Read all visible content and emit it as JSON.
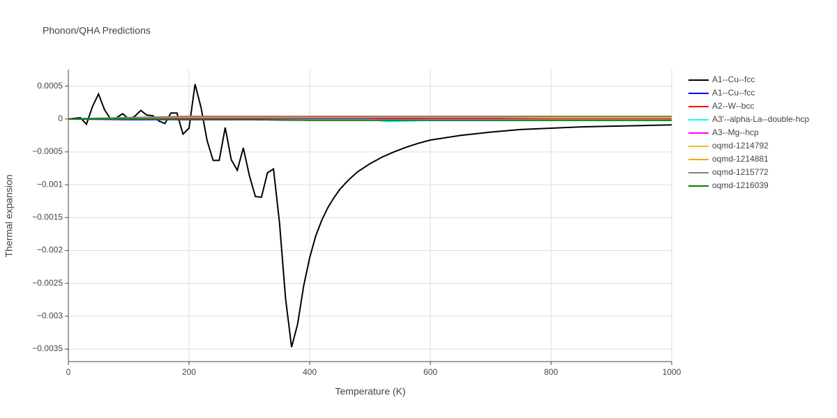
{
  "chart_data": {
    "type": "line",
    "title": "Phonon/QHA Predictions",
    "x_label": "Temperature (K)",
    "y_label": "Thermal expansion",
    "xlim": [
      0,
      1000
    ],
    "xticks": [
      0,
      200,
      400,
      600,
      800,
      1000
    ],
    "ylim": [
      -0.00369,
      0.00075
    ],
    "yticks": [
      {
        "value": -0.0035,
        "label": "−0.0035"
      },
      {
        "value": -0.003,
        "label": "−0.003"
      },
      {
        "value": -0.0025,
        "label": "−0.0025"
      },
      {
        "value": -0.002,
        "label": "−0.002"
      },
      {
        "value": -0.0015,
        "label": "−0.0015"
      },
      {
        "value": -0.001,
        "label": "−0.001"
      },
      {
        "value": -0.0005,
        "label": "−0.0005"
      },
      0,
      0.0005
    ],
    "grid": true,
    "series": [
      {
        "name": "A1--Cu--fcc",
        "color": "#000000",
        "x": [
          0,
          10,
          20,
          30,
          40,
          50,
          60,
          70,
          80,
          90,
          100,
          110,
          120,
          130,
          140,
          150,
          160,
          170,
          180,
          190,
          200,
          210,
          220,
          230,
          240,
          250,
          260,
          270,
          280,
          290,
          300,
          310,
          320,
          330,
          340,
          350,
          360,
          370,
          380,
          390,
          400,
          410,
          420,
          430,
          440,
          450,
          460,
          470,
          480,
          490,
          500,
          520,
          540,
          560,
          580,
          600,
          650,
          700,
          750,
          800,
          850,
          900,
          950,
          1000
        ],
        "values": [
          0,
          1e-05,
          2e-05,
          -8e-05,
          0.00019,
          0.00038,
          0.00014,
          0,
          2e-05,
          8e-05,
          0,
          4e-05,
          0.00013,
          6e-05,
          5e-05,
          -3e-05,
          -7e-05,
          9e-05,
          9e-05,
          -0.00023,
          -0.00014,
          0.00053,
          0.00017,
          -0.00033,
          -0.00063,
          -0.00063,
          -0.00013,
          -0.00062,
          -0.00078,
          -0.00044,
          -0.00086,
          -0.00118,
          -0.00119,
          -0.00082,
          -0.00076,
          -0.00158,
          -0.00273,
          -0.00347,
          -0.00312,
          -0.00254,
          -0.00211,
          -0.00178,
          -0.00154,
          -0.00135,
          -0.0012,
          -0.00107,
          -0.00097,
          -0.00088,
          -0.0008,
          -0.00074,
          -0.00068,
          -0.00058,
          -0.0005,
          -0.00043,
          -0.00037,
          -0.00032,
          -0.00025,
          -0.0002,
          -0.00016,
          -0.00014,
          -0.00012,
          -0.00011,
          -0.0001,
          -9e-05
        ]
      },
      {
        "name": "A1--Cu--fcc",
        "color": "#0000ff",
        "x": [
          0,
          100,
          200,
          300,
          400,
          500,
          600,
          700,
          800,
          900,
          1000
        ],
        "values": [
          0,
          -1e-05,
          -1e-05,
          -1e-05,
          -2e-05,
          -2e-05,
          -2e-05,
          -2e-05,
          -2e-05,
          -2e-05,
          -2e-05
        ]
      },
      {
        "name": "A2--W--bcc",
        "color": "#ff0000",
        "x": [
          0,
          100,
          200,
          300,
          400,
          500,
          600,
          700,
          800,
          900,
          1000
        ],
        "values": [
          0,
          1e-05,
          1e-05,
          1e-05,
          1e-05,
          1e-05,
          1e-05,
          1e-05,
          1e-05,
          1e-05,
          1e-05
        ]
      },
      {
        "name": "A3'--alpha-La--double-hcp",
        "color": "#00ffff",
        "x": [
          0,
          100,
          200,
          300,
          400,
          500,
          530,
          600,
          700,
          800,
          900,
          1000
        ],
        "values": [
          0,
          0,
          -1e-05,
          -1e-05,
          -1e-05,
          -1e-05,
          -4e-05,
          -2e-05,
          -2e-05,
          -2e-05,
          -2e-05,
          -2e-05
        ]
      },
      {
        "name": "A3--Mg--hcp",
        "color": "#ff00ff",
        "x": [
          0,
          100,
          200,
          300,
          400,
          500,
          600,
          700,
          800,
          900,
          1000
        ],
        "values": [
          0,
          1e-05,
          2e-05,
          2e-05,
          2e-05,
          2e-05,
          2e-05,
          2e-05,
          2e-05,
          2e-05,
          2e-05
        ]
      },
      {
        "name": "oqmd-1214792",
        "color": "#f0c020",
        "x": [
          0,
          100,
          200,
          300,
          400,
          500,
          600,
          700,
          800,
          900,
          1000
        ],
        "values": [
          0,
          2e-05,
          3e-05,
          3e-05,
          3e-05,
          3e-05,
          3e-05,
          3e-05,
          2e-05,
          2e-05,
          2e-05
        ]
      },
      {
        "name": "oqmd-1214881",
        "color": "#ffa500",
        "x": [
          0,
          100,
          200,
          300,
          400,
          500,
          600,
          700,
          800,
          900,
          1000
        ],
        "values": [
          0,
          2e-05,
          3e-05,
          3e-05,
          3e-05,
          3e-05,
          3e-05,
          3e-05,
          3e-05,
          3e-05,
          3e-05
        ]
      },
      {
        "name": "oqmd-1215772",
        "color": "#808080",
        "x": [
          0,
          100,
          200,
          300,
          400,
          500,
          600,
          700,
          800,
          900,
          1000
        ],
        "values": [
          0,
          2e-05,
          4e-05,
          4e-05,
          4e-05,
          4e-05,
          4e-05,
          4e-05,
          4e-05,
          4e-05,
          4e-05
        ]
      },
      {
        "name": "oqmd-1216039",
        "color": "#008000",
        "x": [
          0,
          100,
          200,
          300,
          400,
          500,
          600,
          700,
          800,
          900,
          1000
        ],
        "values": [
          0,
          0,
          -1e-05,
          -1e-05,
          -2e-05,
          -2e-05,
          -2e-05,
          -2e-05,
          -2e-05,
          -2e-05,
          -2e-05
        ]
      }
    ]
  }
}
